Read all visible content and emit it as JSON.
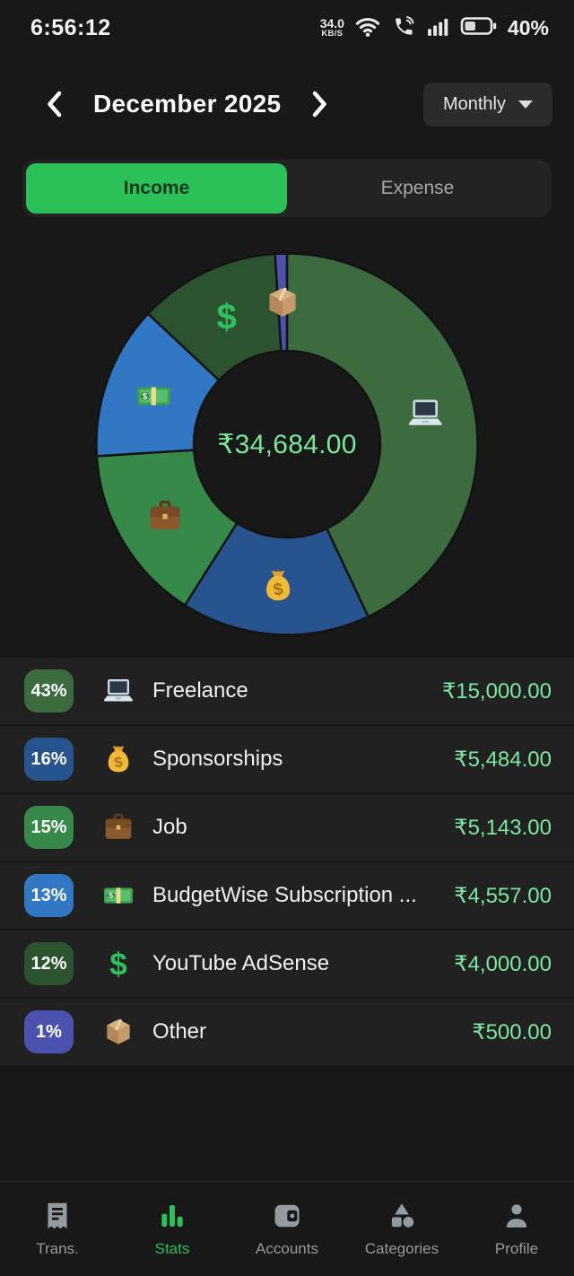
{
  "status_bar": {
    "time": "6:56:12",
    "network_speed_value": "34.0",
    "network_speed_unit": "KB/S",
    "battery_percent": "40%"
  },
  "header": {
    "period_title": "December 2025",
    "period_selector": "Monthly"
  },
  "toggle": {
    "income_label": "Income",
    "expense_label": "Expense",
    "selected": "Income",
    "accent_color": "#2BC158"
  },
  "chart_data": {
    "type": "pie",
    "title": "",
    "center_label": "₹34,684.00",
    "total": 34684.0,
    "currency": "INR",
    "direction": "clockwise",
    "start_angle_deg": 0,
    "donut_hole_ratio": 0.49,
    "slices": [
      {
        "label": "Freelance",
        "percent": 43,
        "value": 15000.0,
        "amount_display": "₹15,000.00",
        "color": "#3C6B40",
        "icon": "laptop-icon"
      },
      {
        "label": "Sponsorships",
        "percent": 16,
        "value": 5484.0,
        "amount_display": "₹5,484.00",
        "color": "#27548F",
        "icon": "money-bag-icon"
      },
      {
        "label": "Job",
        "percent": 15,
        "value": 5143.0,
        "amount_display": "₹5,143.00",
        "color": "#37894A",
        "icon": "briefcase-icon"
      },
      {
        "label": "BudgetWise Subscription ...",
        "percent": 13,
        "value": 4557.0,
        "amount_display": "₹4,557.00",
        "color": "#3177C4",
        "icon": "banknote-icon"
      },
      {
        "label": "YouTube AdSense",
        "percent": 12,
        "value": 4000.0,
        "amount_display": "₹4,000.00",
        "color": "#2B5330",
        "icon": "dollar-icon"
      },
      {
        "label": "Other",
        "percent": 1,
        "value": 500.0,
        "amount_display": "₹500.00",
        "color": "#4B51AC",
        "icon": "package-icon"
      }
    ]
  },
  "legend": {
    "items": [
      {
        "percent": "43%",
        "label": "Freelance",
        "amount": "₹15,000.00",
        "color": "#3C6B40",
        "icon": "laptop-icon"
      },
      {
        "percent": "16%",
        "label": "Sponsorships",
        "amount": "₹5,484.00",
        "color": "#27548F",
        "icon": "money-bag-icon"
      },
      {
        "percent": "15%",
        "label": "Job",
        "amount": "₹5,143.00",
        "color": "#37894A",
        "icon": "briefcase-icon"
      },
      {
        "percent": "13%",
        "label": "BudgetWise Subscription ...",
        "amount": "₹4,557.00",
        "color": "#3177C4",
        "icon": "banknote-icon"
      },
      {
        "percent": "12%",
        "label": "YouTube AdSense",
        "amount": "₹4,000.00",
        "color": "#2B5330",
        "icon": "dollar-icon"
      },
      {
        "percent": "1%",
        "label": "Other",
        "amount": "₹500.00",
        "color": "#4B51AC",
        "icon": "package-icon"
      }
    ]
  },
  "bottom_nav": {
    "active_color": "#2BC158",
    "inactive_color": "#949BA1",
    "items": [
      {
        "label": "Trans.",
        "icon": "receipt-icon",
        "active": false
      },
      {
        "label": "Stats",
        "icon": "bar-chart-icon",
        "active": true
      },
      {
        "label": "Accounts",
        "icon": "wallet-icon",
        "active": false
      },
      {
        "label": "Categories",
        "icon": "categories-icon",
        "active": false
      },
      {
        "label": "Profile",
        "icon": "person-icon",
        "active": false
      }
    ]
  }
}
